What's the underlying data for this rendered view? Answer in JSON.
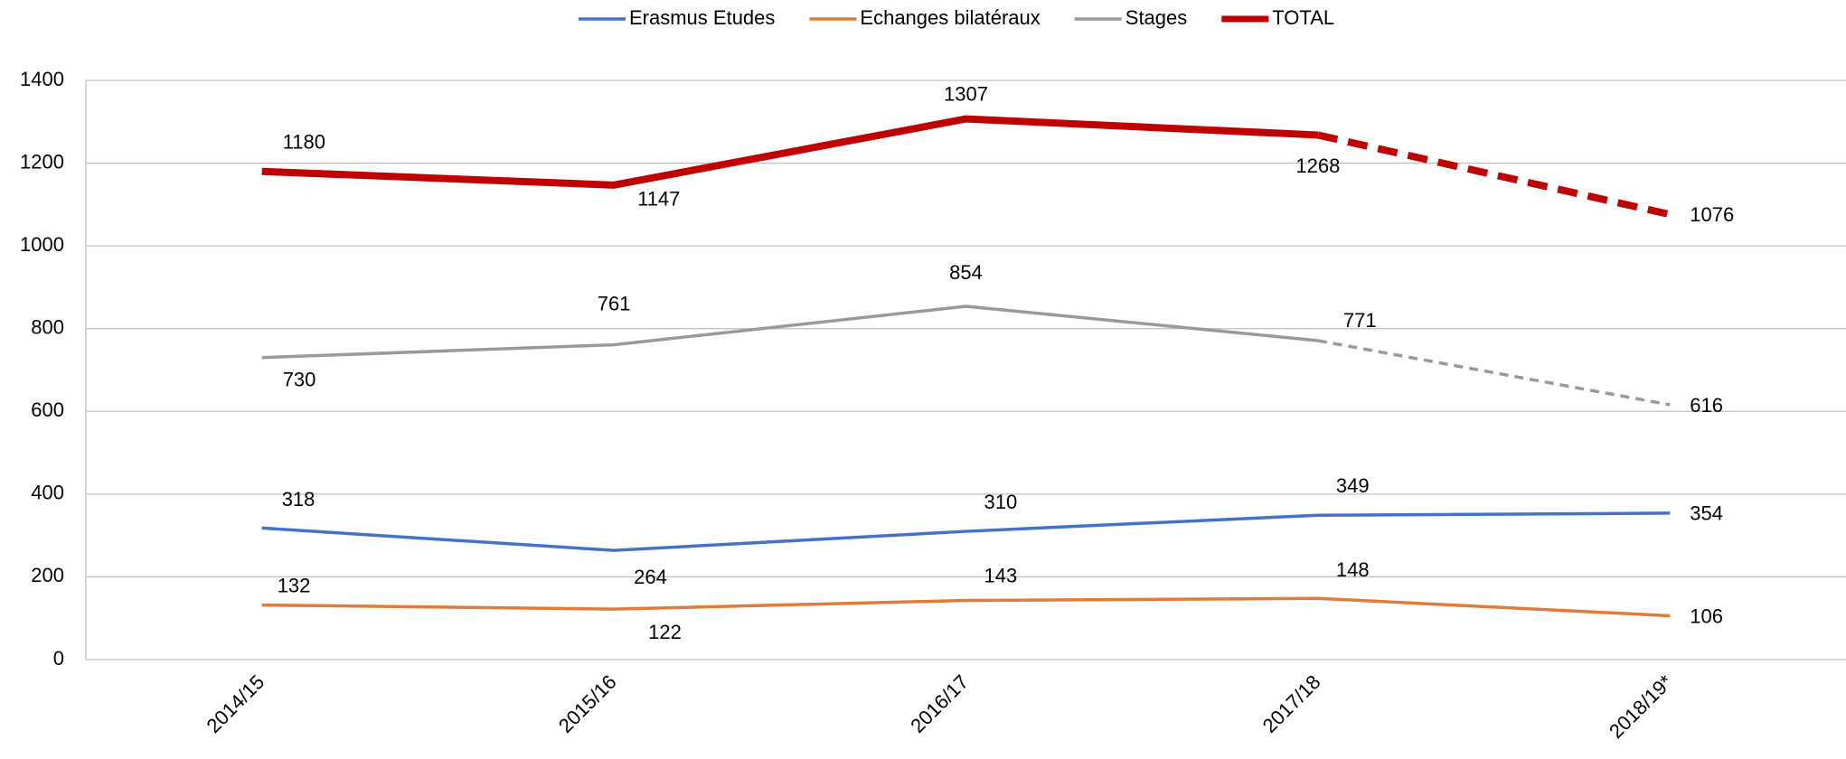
{
  "chart_data": {
    "type": "line",
    "categories": [
      "2014/15",
      "2015/16",
      "2016/17",
      "2017/18",
      "2018/19*"
    ],
    "series": [
      {
        "name": "Erasmus Etudes",
        "color": "#4472c4",
        "values": [
          318,
          264,
          310,
          349,
          354
        ]
      },
      {
        "name": "Echanges bilatéraux",
        "color": "#e07b39",
        "values": [
          132,
          122,
          143,
          148,
          106
        ]
      },
      {
        "name": "Stages",
        "color": "#999999",
        "values": [
          730,
          761,
          854,
          771,
          616
        ],
        "dash_last_segment": true
      },
      {
        "name": "TOTAL",
        "color": "#c00000",
        "values": [
          1180,
          1147,
          1307,
          1268,
          1076
        ],
        "dash_last_segment": true,
        "bold": true
      }
    ],
    "ylim": [
      0,
      1400
    ],
    "yticks": [
      0,
      200,
      400,
      600,
      800,
      1000,
      1200,
      1400
    ],
    "grid": true,
    "legend": "top"
  }
}
